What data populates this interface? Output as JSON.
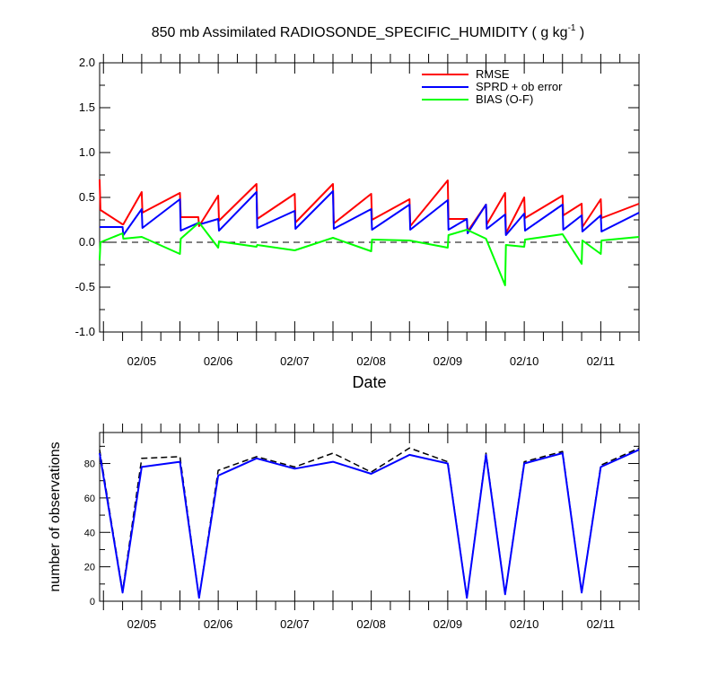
{
  "title_main": "850 mb Assimilated RADIOSONDE_SPECIFIC_HUMIDITY ( g kg",
  "title_sup": "-1",
  "title_end": " )",
  "chart_data": [
    {
      "type": "line",
      "title": "850 mb Assimilated RADIOSONDE_SPECIFIC_HUMIDITY ( g kg-1 )",
      "xlabel": "Date",
      "ylabel": "",
      "ylim": [
        -1.0,
        2.0
      ],
      "yticks": [
        "-1.0",
        "-0.5",
        "0.0",
        "0.5",
        "1.0",
        "1.5",
        "2.0"
      ],
      "xlim": [
        4.45,
        11.5
      ],
      "xticks": [
        {
          "x": 5,
          "label": "02/05"
        },
        {
          "x": 6,
          "label": "02/06"
        },
        {
          "x": 7,
          "label": "02/07"
        },
        {
          "x": 8,
          "label": "02/08"
        },
        {
          "x": 9,
          "label": "02/09"
        },
        {
          "x": 10,
          "label": "02/10"
        },
        {
          "x": 11,
          "label": "02/11"
        }
      ],
      "zero_line": true,
      "legend_position": "top-right",
      "series": [
        {
          "name": "RMSE",
          "color": "#ff0000",
          "points": [
            [
              4.45,
              0.7
            ],
            [
              4.46,
              0.36
            ],
            [
              4.75,
              0.2
            ],
            [
              4.76,
              0.2
            ],
            [
              5.0,
              0.56
            ],
            [
              5.01,
              0.33
            ],
            [
              5.5,
              0.55
            ],
            [
              5.51,
              0.28
            ],
            [
              5.74,
              0.28
            ],
            [
              5.75,
              0.18
            ],
            [
              6.0,
              0.52
            ],
            [
              6.01,
              0.24
            ],
            [
              6.5,
              0.65
            ],
            [
              6.51,
              0.26
            ],
            [
              7.0,
              0.54
            ],
            [
              7.01,
              0.22
            ],
            [
              7.5,
              0.65
            ],
            [
              7.51,
              0.21
            ],
            [
              8.0,
              0.54
            ],
            [
              8.01,
              0.25
            ],
            [
              8.5,
              0.48
            ],
            [
              8.51,
              0.18
            ],
            [
              9.0,
              0.69
            ],
            [
              9.01,
              0.26
            ],
            [
              9.25,
              0.26
            ],
            [
              9.26,
              0.12
            ],
            [
              9.5,
              0.42
            ],
            [
              9.51,
              0.2
            ],
            [
              9.75,
              0.55
            ],
            [
              9.76,
              0.1
            ],
            [
              10.0,
              0.5
            ],
            [
              10.01,
              0.27
            ],
            [
              10.5,
              0.52
            ],
            [
              10.51,
              0.3
            ],
            [
              10.75,
              0.43
            ],
            [
              10.76,
              0.17
            ],
            [
              11.0,
              0.48
            ],
            [
              11.01,
              0.27
            ],
            [
              11.5,
              0.43
            ]
          ]
        },
        {
          "name": "SPRD + ob error",
          "color": "#0000ff",
          "points": [
            [
              4.45,
              0.17
            ],
            [
              4.75,
              0.17
            ],
            [
              4.76,
              0.08
            ],
            [
              5.0,
              0.37
            ],
            [
              5.01,
              0.16
            ],
            [
              5.5,
              0.48
            ],
            [
              5.51,
              0.13
            ],
            [
              5.75,
              0.22
            ],
            [
              5.76,
              0.2
            ],
            [
              6.0,
              0.26
            ],
            [
              6.01,
              0.13
            ],
            [
              6.5,
              0.56
            ],
            [
              6.51,
              0.16
            ],
            [
              7.0,
              0.35
            ],
            [
              7.01,
              0.15
            ],
            [
              7.5,
              0.57
            ],
            [
              7.51,
              0.15
            ],
            [
              8.0,
              0.37
            ],
            [
              8.01,
              0.14
            ],
            [
              8.5,
              0.42
            ],
            [
              8.51,
              0.14
            ],
            [
              9.0,
              0.47
            ],
            [
              9.01,
              0.14
            ],
            [
              9.25,
              0.26
            ],
            [
              9.26,
              0.1
            ],
            [
              9.5,
              0.42
            ],
            [
              9.51,
              0.15
            ],
            [
              9.75,
              0.31
            ],
            [
              9.76,
              0.08
            ],
            [
              10.0,
              0.32
            ],
            [
              10.01,
              0.13
            ],
            [
              10.5,
              0.42
            ],
            [
              10.51,
              0.14
            ],
            [
              10.75,
              0.3
            ],
            [
              10.76,
              0.12
            ],
            [
              11.0,
              0.3
            ],
            [
              11.01,
              0.12
            ],
            [
              11.5,
              0.33
            ]
          ]
        },
        {
          "name": "BIAS (O-F)",
          "color": "#00ff00",
          "points": [
            [
              4.45,
              -0.2
            ],
            [
              4.46,
              0.0
            ],
            [
              4.75,
              0.1
            ],
            [
              4.76,
              0.04
            ],
            [
              5.0,
              0.06
            ],
            [
              5.5,
              -0.13
            ],
            [
              5.51,
              0.04
            ],
            [
              5.75,
              0.22
            ],
            [
              6.0,
              -0.06
            ],
            [
              6.01,
              0.01
            ],
            [
              6.5,
              -0.05
            ],
            [
              6.51,
              -0.03
            ],
            [
              7.0,
              -0.09
            ],
            [
              7.5,
              0.05
            ],
            [
              8.0,
              -0.1
            ],
            [
              8.01,
              0.03
            ],
            [
              8.5,
              0.02
            ],
            [
              9.0,
              -0.06
            ],
            [
              9.01,
              0.08
            ],
            [
              9.25,
              0.14
            ],
            [
              9.5,
              0.04
            ],
            [
              9.75,
              -0.48
            ],
            [
              9.76,
              -0.03
            ],
            [
              10.0,
              -0.05
            ],
            [
              10.01,
              0.03
            ],
            [
              10.5,
              0.09
            ],
            [
              10.75,
              -0.24
            ],
            [
              10.76,
              0.02
            ],
            [
              11.0,
              -0.13
            ],
            [
              11.01,
              0.02
            ],
            [
              11.5,
              0.06
            ]
          ]
        }
      ]
    },
    {
      "type": "line",
      "title": "",
      "xlabel": "",
      "ylabel": "number of observations",
      "ylim": [
        0,
        98
      ],
      "yticks": [
        "0",
        "20",
        "40",
        "60",
        "80"
      ],
      "xlim": [
        4.45,
        11.5
      ],
      "xticks": [
        {
          "x": 5,
          "label": "02/05"
        },
        {
          "x": 6,
          "label": "02/06"
        },
        {
          "x": 7,
          "label": "02/07"
        },
        {
          "x": 8,
          "label": "02/08"
        },
        {
          "x": 9,
          "label": "02/09"
        },
        {
          "x": 10,
          "label": "02/10"
        },
        {
          "x": 11,
          "label": "02/11"
        }
      ],
      "series": [
        {
          "color": "#000000",
          "dash": true,
          "points": [
            [
              4.45,
              88
            ],
            [
              4.75,
              6
            ],
            [
              5.0,
              83
            ],
            [
              5.5,
              84
            ],
            [
              5.75,
              2
            ],
            [
              6.0,
              76
            ],
            [
              6.5,
              84
            ],
            [
              7.0,
              78
            ],
            [
              7.5,
              86
            ],
            [
              8.0,
              75
            ],
            [
              8.5,
              89
            ],
            [
              9.0,
              81
            ],
            [
              9.25,
              2
            ],
            [
              9.5,
              86
            ],
            [
              9.75,
              4
            ],
            [
              10.0,
              81
            ],
            [
              10.5,
              87
            ],
            [
              10.75,
              5
            ],
            [
              11.0,
              79
            ],
            [
              11.5,
              89
            ]
          ]
        },
        {
          "color": "#0000ff",
          "points": [
            [
              4.45,
              86
            ],
            [
              4.75,
              5
            ],
            [
              5.0,
              78
            ],
            [
              5.5,
              81
            ],
            [
              5.75,
              2
            ],
            [
              6.0,
              73
            ],
            [
              6.5,
              83
            ],
            [
              7.0,
              77
            ],
            [
              7.5,
              81
            ],
            [
              8.0,
              74
            ],
            [
              8.5,
              85
            ],
            [
              9.0,
              80
            ],
            [
              9.25,
              2
            ],
            [
              9.5,
              85
            ],
            [
              9.75,
              4
            ],
            [
              10.0,
              80
            ],
            [
              10.5,
              86
            ],
            [
              10.75,
              5
            ],
            [
              11.0,
              78
            ],
            [
              11.5,
              88
            ]
          ]
        }
      ]
    }
  ]
}
